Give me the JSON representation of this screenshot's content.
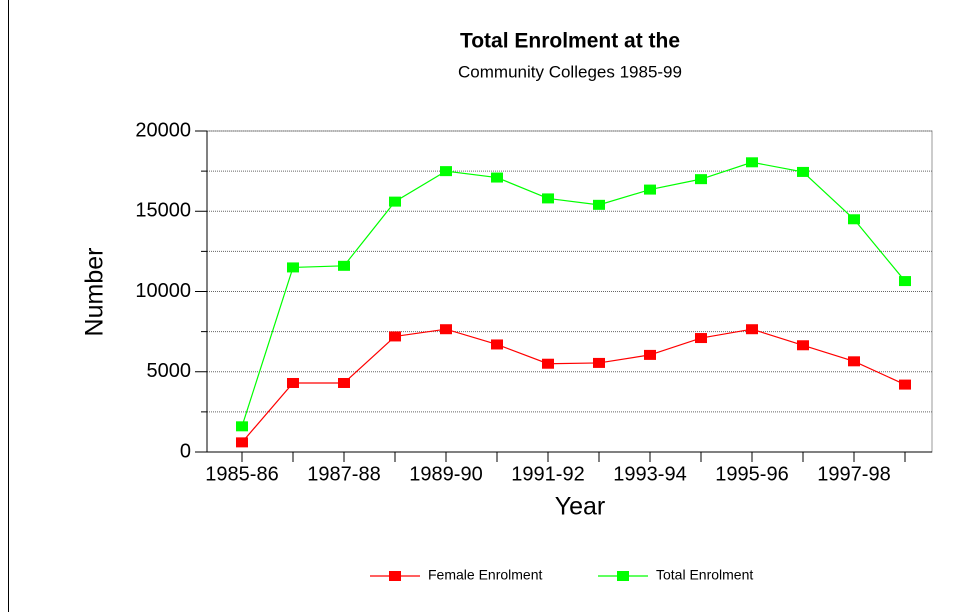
{
  "chart_data": {
    "type": "line",
    "title": "Total Enrolment at the",
    "subtitle": "Community Colleges 1985-99",
    "x_label": "Year",
    "y_label": "Number",
    "categories": [
      "1985-86",
      null,
      "1987-88",
      null,
      "1989-90",
      null,
      "1991-92",
      null,
      "1993-94",
      null,
      "1995-96",
      null,
      "1997-98",
      null
    ],
    "series": [
      {
        "name": "Female Enrolment",
        "color": "#ff0000",
        "values": [
          600,
          4300,
          4300,
          7200,
          7650,
          6700,
          5500,
          5550,
          6050,
          7100,
          7650,
          6650,
          5650,
          4200
        ]
      },
      {
        "name": "Total Enrolment",
        "color": "#00ff00",
        "values": [
          1600,
          11500,
          11600,
          15600,
          17500,
          17100,
          15800,
          15400,
          16350,
          17000,
          18050,
          17450,
          14500,
          10650
        ]
      }
    ],
    "ylim": [
      0,
      20000
    ],
    "yticks": [
      0,
      5000,
      10000,
      15000,
      20000
    ],
    "minor_yticks": [
      2500,
      7500,
      12500,
      17500
    ],
    "grid": true,
    "legend": "bottom"
  }
}
